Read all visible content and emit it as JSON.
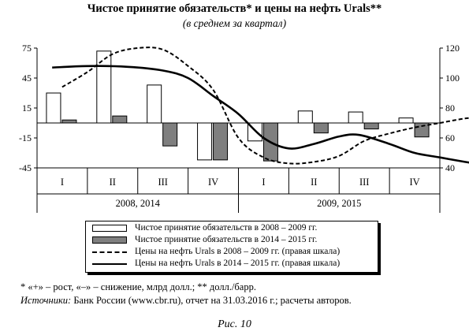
{
  "header": {
    "title": "Чистое принятие обязательств* и цены на нефть Urals**",
    "subtitle": "(в среднем за квартал)"
  },
  "chart_data": {
    "type": "bar+line",
    "categories": [
      "I",
      "II",
      "III",
      "IV"
    ],
    "periods": [
      "2008, 2014",
      "2009, 2015"
    ],
    "y_left": {
      "ticks": [
        "75",
        "45",
        "15",
        "-15",
        "-45"
      ],
      "range": [
        -45,
        75
      ]
    },
    "y_right": {
      "ticks": [
        "120",
        "100",
        "80",
        "60",
        "40"
      ],
      "range": [
        40,
        120
      ]
    },
    "bars": [
      {
        "name": "Чистое принятие обязательств в 2008 – 2009 гг.",
        "color": "#ffffff",
        "values": [
          30,
          72,
          38,
          -37,
          -18,
          12,
          11,
          5
        ]
      },
      {
        "name": "Чистое принятие обязательств в 2014 – 2015 гг.",
        "color": "#7f7f7f",
        "values": [
          3,
          7,
          -23,
          -37,
          -38,
          -10,
          -6,
          -14
        ]
      }
    ],
    "lines": [
      {
        "name": "Цены на нефть Urals в 2008 – 2009 гг. (правая шкала)",
        "axis": "right",
        "style": "dashed",
        "points": [
          [
            0.5,
            94
          ],
          [
            1.0,
            104
          ],
          [
            1.5,
            116
          ],
          [
            2.0,
            120
          ],
          [
            2.5,
            119
          ],
          [
            3.0,
            108
          ],
          [
            3.5,
            92
          ],
          [
            4.0,
            60
          ],
          [
            4.5,
            47
          ],
          [
            5.0,
            43
          ],
          [
            5.5,
            44
          ],
          [
            6.0,
            48
          ],
          [
            6.5,
            58
          ],
          [
            7.0,
            63
          ],
          [
            7.5,
            67
          ],
          [
            8.0,
            70
          ],
          [
            8.5,
            73
          ],
          [
            8.9,
            74
          ]
        ]
      },
      {
        "name": "Цены на нефть Urals в 2014 – 2015 гг. (правая шкала)",
        "axis": "right",
        "style": "solid",
        "points": [
          [
            0.3,
            107
          ],
          [
            1.0,
            108
          ],
          [
            1.8,
            107.5
          ],
          [
            2.5,
            105
          ],
          [
            3.0,
            100
          ],
          [
            3.5,
            88
          ],
          [
            4.0,
            76
          ],
          [
            4.5,
            60
          ],
          [
            5.0,
            53
          ],
          [
            5.5,
            56
          ],
          [
            6.0,
            61
          ],
          [
            6.4,
            62
          ],
          [
            7.0,
            56
          ],
          [
            7.5,
            50
          ],
          [
            8.0,
            47
          ],
          [
            8.5,
            44
          ],
          [
            8.9,
            42
          ]
        ]
      }
    ]
  },
  "legend": {
    "items": [
      "Чистое принятие обязательств в 2008 – 2009 гг.",
      "Чистое принятие обязательств в 2014 – 2015 гг.",
      "Цены на нефть Urals в 2008 – 2009 гг. (правая шкала)",
      "Цены на нефть Urals в 2014 – 2015 гг. (правая шкала)"
    ]
  },
  "notes": {
    "footnote": "* «+» – рост, «–» – снижение, млрд долл.; ** долл./барр.",
    "sources_label": "Источники:",
    "sources_text": " Банк России (www.cbr.ru), отчет на 31.03.2016 г.; расчеты авторов."
  },
  "figure_caption": "Рис. 10"
}
